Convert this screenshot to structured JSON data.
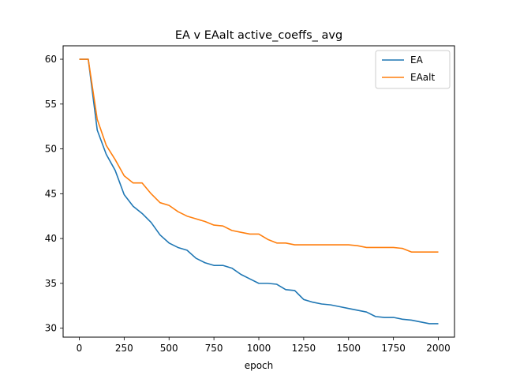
{
  "chart_data": {
    "type": "line",
    "title": "EA v EAalt active_coeffs_ avg",
    "xlabel": "epoch",
    "ylabel": "",
    "xlim": [
      -90,
      2090
    ],
    "ylim": [
      29.0,
      61.5
    ],
    "xticks": [
      0,
      250,
      500,
      750,
      1000,
      1250,
      1500,
      1750,
      2000
    ],
    "yticks": [
      30,
      35,
      40,
      45,
      50,
      55,
      60
    ],
    "grid": false,
    "legend_position": "top-right",
    "x": [
      0,
      50,
      100,
      150,
      200,
      250,
      300,
      350,
      400,
      450,
      500,
      550,
      600,
      650,
      700,
      750,
      800,
      850,
      900,
      950,
      1000,
      1050,
      1100,
      1150,
      1200,
      1250,
      1300,
      1350,
      1400,
      1450,
      1500,
      1550,
      1600,
      1650,
      1700,
      1750,
      1800,
      1850,
      1900,
      1950,
      2000
    ],
    "series": [
      {
        "name": "EA",
        "color": "#1f77b4",
        "values": [
          60.0,
          60.0,
          52.1,
          49.4,
          47.6,
          44.9,
          43.6,
          42.8,
          41.8,
          40.4,
          39.5,
          39.0,
          38.7,
          37.8,
          37.3,
          37.0,
          37.0,
          36.7,
          36.0,
          35.5,
          35.0,
          35.0,
          34.9,
          34.3,
          34.2,
          33.2,
          32.9,
          32.7,
          32.6,
          32.4,
          32.2,
          32.0,
          31.8,
          31.3,
          31.2,
          31.2,
          31.0,
          30.9,
          30.7,
          30.5,
          30.5
        ]
      },
      {
        "name": "EAalt",
        "color": "#ff7f0e",
        "values": [
          60.0,
          60.0,
          53.3,
          50.4,
          48.8,
          47.0,
          46.2,
          46.2,
          45.0,
          44.0,
          43.7,
          43.0,
          42.5,
          42.2,
          41.9,
          41.5,
          41.4,
          40.9,
          40.7,
          40.5,
          40.5,
          39.9,
          39.5,
          39.5,
          39.3,
          39.3,
          39.3,
          39.3,
          39.3,
          39.3,
          39.3,
          39.2,
          39.0,
          39.0,
          39.0,
          39.0,
          38.9,
          38.5,
          38.5,
          38.5,
          38.5
        ]
      }
    ]
  }
}
